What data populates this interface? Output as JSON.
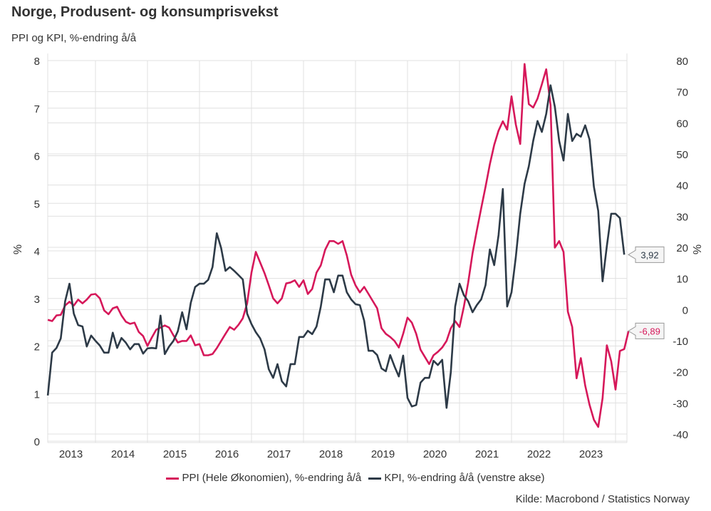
{
  "header": {
    "title": "Norge, Produsent- og konsumprisvekst",
    "subtitle": "PPI og KPI, %-endring å/å"
  },
  "source": "Kilde: Macrobond / Statistics Norway",
  "colors": {
    "ppi": "#d6185a",
    "kpi": "#2d3a47",
    "grid": "#e0e0e0"
  },
  "chart_data": {
    "type": "line",
    "title": "Norge, Produsent- og konsumprisvekst",
    "subtitle": "PPI og KPI, %-endring å/å",
    "xlabel": "",
    "ylabel_left": "%",
    "ylabel_right": "%",
    "x_start": "2013-02",
    "frequency": "monthly",
    "x_ticks": [
      "2013",
      "2014",
      "2015",
      "2016",
      "2017",
      "2018",
      "2019",
      "2020",
      "2021",
      "2022",
      "2023"
    ],
    "ylim_left": [
      0,
      8
    ],
    "yticks_left": [
      "0",
      "1",
      "2",
      "3",
      "4",
      "5",
      "6",
      "7",
      "8"
    ],
    "ylim_right": [
      -40,
      80
    ],
    "yticks_right": [
      "-40",
      "-30",
      "-20",
      "-10",
      "0",
      "10",
      "20",
      "30",
      "40",
      "50",
      "60",
      "70",
      "80"
    ],
    "grid": true,
    "legend_position": "bottom",
    "series": [
      {
        "name": "PPI (Hele Økonomien), %-endring å/å",
        "axis": "right",
        "last_value_label": "-6,89",
        "values": [
          -3.3,
          -3.7,
          -1.9,
          -1.7,
          1.3,
          2.5,
          1.3,
          3.2,
          2.0,
          3.2,
          4.8,
          5.0,
          3.6,
          -0.3,
          -1.5,
          0.4,
          0.9,
          -1.9,
          -3.9,
          -4.6,
          -4.2,
          -7.2,
          -8.5,
          -11.7,
          -9.0,
          -6.5,
          -5.8,
          -5.1,
          -5.8,
          -8.3,
          -10.6,
          -10.1,
          -10.1,
          -8.3,
          -11.5,
          -11.1,
          -14.7,
          -14.7,
          -14.3,
          -12.4,
          -10.1,
          -7.8,
          -5.6,
          -6.5,
          -4.9,
          -2.8,
          2.0,
          11.9,
          18.5,
          15.1,
          11.7,
          7.8,
          3.6,
          2.0,
          3.6,
          8.4,
          8.7,
          9.4,
          7.3,
          9.4,
          5.0,
          6.6,
          11.9,
          14.2,
          19.2,
          22.0,
          22.0,
          21.1,
          22.0,
          17.4,
          11.2,
          7.8,
          5.5,
          7.3,
          5.0,
          2.7,
          0.4,
          -6.0,
          -7.8,
          -8.8,
          -10.1,
          -12.2,
          -7.8,
          -2.6,
          -4.2,
          -7.8,
          -12.9,
          -15.2,
          -17.5,
          -14.7,
          -13.6,
          -12.2,
          -10.1,
          -6.0,
          -3.7,
          -5.6,
          0.9,
          8.7,
          18.1,
          25.4,
          32.5,
          39.4,
          46.7,
          52.9,
          57.5,
          60.5,
          57.8,
          68.5,
          59.4,
          53.2,
          78.9,
          66.0,
          64.9,
          67.8,
          72.4,
          77.2,
          65.6,
          19.9,
          22.0,
          18.5,
          -0.7,
          -5.6,
          -22.1,
          -15.6,
          -24.4,
          -30.6,
          -35.4,
          -37.7,
          -28.5,
          -11.5,
          -16.6,
          -25.7,
          -13.3,
          -12.7,
          -6.89
        ]
      },
      {
        "name": "KPI, %-endring å/å (venstre akse)",
        "axis": "left",
        "last_value_label": "3,92",
        "values": [
          0.96,
          1.86,
          1.96,
          2.16,
          2.94,
          3.31,
          2.68,
          2.44,
          2.41,
          1.99,
          2.22,
          2.11,
          2.01,
          1.86,
          1.86,
          2.28,
          1.96,
          2.17,
          2.07,
          1.93,
          2.04,
          2.04,
          1.84,
          1.95,
          1.96,
          1.95,
          2.64,
          1.83,
          1.99,
          2.11,
          2.31,
          2.71,
          2.35,
          2.91,
          3.24,
          3.31,
          3.31,
          3.39,
          3.66,
          4.37,
          4.06,
          3.58,
          3.66,
          3.58,
          3.49,
          3.4,
          2.68,
          2.46,
          2.29,
          2.16,
          1.93,
          1.51,
          1.33,
          1.62,
          1.26,
          1.15,
          1.62,
          1.62,
          2.19,
          2.19,
          2.32,
          2.25,
          2.41,
          2.83,
          3.4,
          3.4,
          3.13,
          3.48,
          3.48,
          3.13,
          2.98,
          2.88,
          2.86,
          2.53,
          1.9,
          1.9,
          1.81,
          1.53,
          1.47,
          1.81,
          1.57,
          1.36,
          1.8,
          0.91,
          0.73,
          0.76,
          1.23,
          1.33,
          1.33,
          1.69,
          1.6,
          1.71,
          0.7,
          1.45,
          2.83,
          3.31,
          3.07,
          2.94,
          2.71,
          2.86,
          2.98,
          3.28,
          4.03,
          3.7,
          4.33,
          5.3,
          2.83,
          3.13,
          3.88,
          4.78,
          5.41,
          5.78,
          6.31,
          6.73,
          6.5,
          6.88,
          7.48,
          7.03,
          6.31,
          5.9,
          6.88,
          6.31,
          6.46,
          6.4,
          6.64,
          6.34,
          5.35,
          4.84,
          3.36,
          4.1,
          4.78,
          4.78,
          4.69,
          3.92
        ]
      }
    ]
  }
}
